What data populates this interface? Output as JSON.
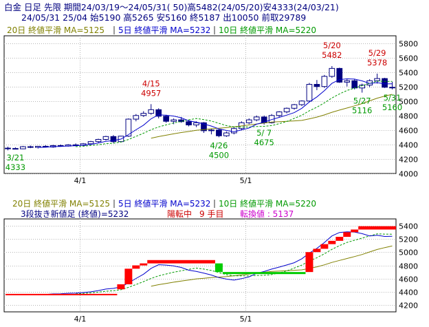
{
  "header": {
    "line1": "白金 日足 先限 期間24/03/19～24/05/31( 50)高5482(24/05/20)安4333(24/03/21)",
    "line2": "24/05/31 25/04 始5190 高5265 安5160 終5187 出10050 前取29789"
  },
  "colors": {
    "bg": "#ffffff",
    "grid": "#b4b4b4",
    "up_body": "#ffffff",
    "down_body": "#000080",
    "candle_line": "#000080",
    "ma20": "#808000",
    "ma5": "#0000cc",
    "ma10": "#009900",
    "high_label": "#cc0000",
    "low_label": "#009900",
    "brick_up": "#ff0000",
    "brick_down": "#00cc00",
    "label_sep": "#333333",
    "renko_info": "#000080",
    "renko_yang": "#cc0000",
    "renko_turn": "#cc00cc"
  },
  "top_legend": [
    {
      "text": "20日 終値平滑 MA=5125",
      "color": "#808000"
    },
    {
      "text": "5日 終値平滑 MA=5232",
      "color": "#0000cc"
    },
    {
      "text": "10日 終値平滑 MA=5220",
      "color": "#009900"
    }
  ],
  "bottom_legend": [
    {
      "text": "20日 終値平滑 MA=5125",
      "color": "#808000"
    },
    {
      "text": "5日 終値平滑 MA=5232",
      "color": "#0000cc"
    },
    {
      "text": "10日 終値平滑 MA=5220",
      "color": "#009900"
    }
  ],
  "renko_info": {
    "title": "3段抜き新値足 (終値)=5232",
    "state": "陽転中",
    "count": "9 手目",
    "turn": "転換値 : 5137"
  },
  "chart_data": [
    {
      "type": "candlestick",
      "y_range": [
        4000,
        5900
      ],
      "y_ticks": [
        4000,
        4200,
        4400,
        4600,
        4800,
        5000,
        5200,
        5400,
        5600,
        5800
      ],
      "x_ticks": [
        {
          "index": 10,
          "label": "4/1"
        },
        {
          "index": 32,
          "label": "5/1"
        }
      ],
      "grid": true,
      "candles": [
        [
          4350,
          4370,
          4320,
          4345
        ],
        [
          4345,
          4360,
          4333,
          4340
        ],
        [
          4340,
          4380,
          4335,
          4370
        ],
        [
          4370,
          4385,
          4350,
          4360
        ],
        [
          4360,
          4380,
          4345,
          4375
        ],
        [
          4375,
          4390,
          4360,
          4365
        ],
        [
          4365,
          4395,
          4355,
          4385
        ],
        [
          4385,
          4400,
          4370,
          4378
        ],
        [
          4378,
          4405,
          4370,
          4395
        ],
        [
          4395,
          4415,
          4380,
          4388
        ],
        [
          4388,
          4420,
          4378,
          4410
        ],
        [
          4410,
          4450,
          4395,
          4440
        ],
        [
          4440,
          4480,
          4425,
          4470
        ],
        [
          4470,
          4520,
          4455,
          4510
        ],
        [
          4510,
          4530,
          4420,
          4440
        ],
        [
          4440,
          4520,
          4430,
          4515
        ],
        [
          4515,
          4760,
          4505,
          4750
        ],
        [
          4750,
          4820,
          4720,
          4800
        ],
        [
          4800,
          4860,
          4780,
          4830
        ],
        [
          4830,
          4957,
          4810,
          4880
        ],
        [
          4880,
          4900,
          4760,
          4790
        ],
        [
          4790,
          4810,
          4700,
          4720
        ],
        [
          4720,
          4760,
          4680,
          4740
        ],
        [
          4740,
          4780,
          4700,
          4715
        ],
        [
          4715,
          4740,
          4650,
          4670
        ],
        [
          4670,
          4720,
          4640,
          4700
        ],
        [
          4700,
          4710,
          4560,
          4590
        ],
        [
          4590,
          4620,
          4540,
          4600
        ],
        [
          4600,
          4610,
          4500,
          4520
        ],
        [
          4520,
          4580,
          4505,
          4560
        ],
        [
          4560,
          4640,
          4540,
          4620
        ],
        [
          4620,
          4720,
          4600,
          4700
        ],
        [
          4700,
          4760,
          4680,
          4740
        ],
        [
          4740,
          4800,
          4720,
          4780
        ],
        [
          4780,
          4800,
          4675,
          4700
        ],
        [
          4700,
          4820,
          4690,
          4800
        ],
        [
          4800,
          4860,
          4780,
          4850
        ],
        [
          4850,
          4910,
          4830,
          4900
        ],
        [
          4900,
          4960,
          4880,
          4950
        ],
        [
          4950,
          5010,
          4930,
          5000
        ],
        [
          5000,
          5250,
          4990,
          5230
        ],
        [
          5230,
          5290,
          5150,
          5200
        ],
        [
          5200,
          5360,
          5180,
          5340
        ],
        [
          5340,
          5482,
          5320,
          5450
        ],
        [
          5450,
          5460,
          5250,
          5260
        ],
        [
          5260,
          5300,
          5200,
          5280
        ],
        [
          5280,
          5300,
          5160,
          5180
        ],
        [
          5180,
          5240,
          5116,
          5220
        ],
        [
          5220,
          5300,
          5190,
          5280
        ],
        [
          5280,
          5378,
          5240,
          5310
        ],
        [
          5310,
          5320,
          5180,
          5190
        ],
        [
          5190,
          5265,
          5160,
          5187
        ]
      ],
      "annotations": [
        {
          "index": 1,
          "date": "3/21",
          "value": "4333",
          "kind": "low"
        },
        {
          "index": 19,
          "date": "4/15",
          "value": "4957",
          "kind": "high"
        },
        {
          "index": 28,
          "date": "4/26",
          "value": "4500",
          "kind": "low"
        },
        {
          "index": 34,
          "date": "5/ 7",
          "value": "4675",
          "kind": "low"
        },
        {
          "index": 43,
          "date": "5/20",
          "value": "5482",
          "kind": "high"
        },
        {
          "index": 47,
          "date": "5/27",
          "value": "5116",
          "kind": "low"
        },
        {
          "index": 49,
          "date": "5/29",
          "value": "5378",
          "kind": "high"
        },
        {
          "index": 51,
          "date": "5/31",
          "value": "5160",
          "kind": "low"
        }
      ]
    },
    {
      "type": "renko",
      "y_range": [
        4100,
        5500
      ],
      "y_ticks": [
        4200,
        4400,
        4600,
        4800,
        5000,
        5200,
        5400
      ],
      "x_ticks": [
        {
          "index": 10,
          "label": "4/1"
        },
        {
          "index": 32,
          "label": "5/1"
        }
      ],
      "grid": true,
      "bricks": [
        {
          "start": 15,
          "end": 16,
          "low": 4440,
          "high": 4515,
          "dir": "up"
        },
        {
          "start": 16,
          "end": 17,
          "low": 4515,
          "high": 4750,
          "dir": "up"
        },
        {
          "start": 17,
          "end": 18,
          "low": 4750,
          "high": 4800,
          "dir": "up"
        },
        {
          "start": 18,
          "end": 19,
          "low": 4800,
          "high": 4830,
          "dir": "up"
        },
        {
          "start": 19,
          "end": 28,
          "low": 4830,
          "high": 4880,
          "dir": "up"
        },
        {
          "start": 28,
          "end": 29,
          "low": 4700,
          "high": 4830,
          "dir": "down"
        },
        {
          "start": 29,
          "end": 40,
          "low": 4690,
          "high": 4700,
          "dir": "down"
        },
        {
          "start": 40,
          "end": 41,
          "low": 4700,
          "high": 5000,
          "dir": "up"
        },
        {
          "start": 41,
          "end": 42,
          "low": 5000,
          "high": 5050,
          "dir": "up"
        },
        {
          "start": 42,
          "end": 43,
          "low": 5050,
          "high": 5120,
          "dir": "up"
        },
        {
          "start": 43,
          "end": 44,
          "low": 5120,
          "high": 5170,
          "dir": "up"
        },
        {
          "start": 44,
          "end": 45,
          "low": 5170,
          "high": 5230,
          "dir": "up"
        },
        {
          "start": 45,
          "end": 46,
          "low": 5230,
          "high": 5300,
          "dir": "up"
        },
        {
          "start": 46,
          "end": 47,
          "low": 5300,
          "high": 5340,
          "dir": "up"
        },
        {
          "start": 47,
          "end": 52,
          "low": 5340,
          "high": 5390,
          "dir": "up"
        }
      ]
    }
  ]
}
